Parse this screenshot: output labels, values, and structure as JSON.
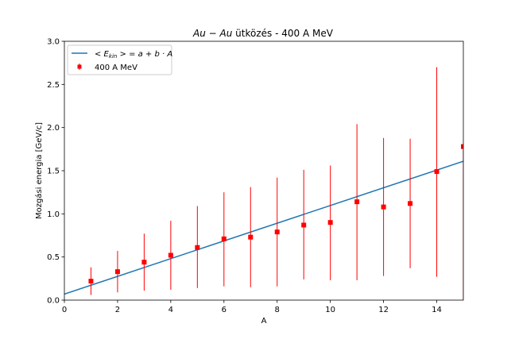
{
  "chart_data": {
    "type": "scatter",
    "title_italic": "Au − Au",
    "title_rest": " ütközés - 400 A MeV",
    "xlabel": "A",
    "ylabel": "Mozgási energia [GeV/c]",
    "xlim": [
      0,
      15
    ],
    "ylim": [
      0,
      3.0
    ],
    "xticks": [
      0,
      2,
      4,
      6,
      8,
      10,
      12,
      14
    ],
    "yticks": [
      0.0,
      0.5,
      1.0,
      1.5,
      2.0,
      2.5,
      3.0
    ],
    "ytick_labels": [
      "0.0",
      "0.5",
      "1.0",
      "1.5",
      "2.0",
      "2.5",
      "3.0"
    ],
    "grid": false,
    "legend_position": "upper-left",
    "series": [
      {
        "name": "400 A MeV",
        "kind": "errorbar",
        "color": "#ff0000",
        "marker": "square",
        "x": [
          1,
          2,
          3,
          4,
          5,
          6,
          7,
          8,
          9,
          10,
          11,
          12,
          13,
          14,
          15
        ],
        "y": [
          0.22,
          0.33,
          0.44,
          0.52,
          0.61,
          0.71,
          0.73,
          0.79,
          0.87,
          0.9,
          1.14,
          1.08,
          1.12,
          1.49,
          1.78
        ],
        "yerr_low": [
          0.06,
          0.09,
          0.11,
          0.12,
          0.14,
          0.16,
          0.15,
          0.16,
          0.24,
          0.23,
          0.23,
          0.28,
          0.37,
          0.27,
          0.0
        ],
        "yerr_high": [
          0.38,
          0.57,
          0.77,
          0.92,
          1.09,
          1.25,
          1.31,
          1.42,
          1.51,
          1.56,
          2.04,
          1.88,
          1.87,
          2.7,
          1.78
        ]
      },
      {
        "name_prefix": "< E",
        "name_sub": "kin",
        "name_suffix": " > = a + b · A",
        "kind": "line",
        "color": "#1f77b4",
        "x": [
          0,
          15
        ],
        "y": [
          0.07,
          1.61
        ]
      }
    ]
  }
}
